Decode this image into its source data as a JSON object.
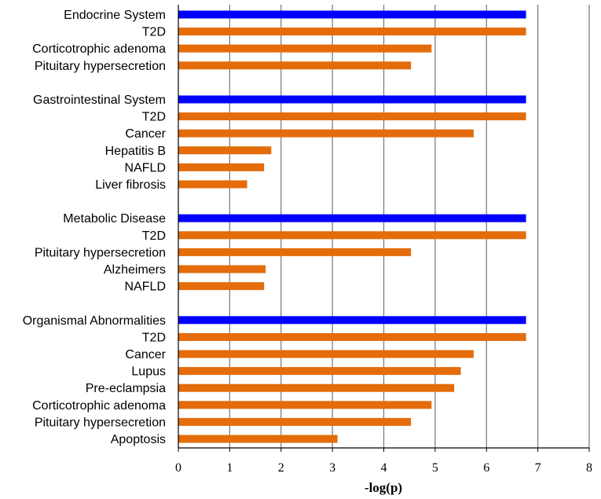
{
  "chart_data": {
    "type": "bar",
    "orientation": "horizontal",
    "xlabel": "-log(p)",
    "ylabel": "",
    "xlim": [
      0,
      8
    ],
    "xticks": [
      0,
      1,
      2,
      3,
      4,
      5,
      6,
      7,
      8
    ],
    "grid": "vertical",
    "colors": {
      "header": "#0000ff",
      "item": "#e46c0a",
      "grid": "#7f7f7f",
      "axis": "#000000"
    },
    "categories": [
      "Endocrine System",
      "T2D",
      "Corticotrophic adenoma",
      "Pituitary hypersecretion",
      "Gastrointestinal System",
      "T2D",
      "Cancer",
      "Hepatitis B",
      "NAFLD",
      "Liver fibrosis",
      "Metabolic Disease",
      "T2D",
      "Pituitary hypersecretion",
      "Alzheimers",
      "NAFLD",
      "Organismal Abnormalities",
      "T2D",
      "Cancer",
      "Lupus",
      "Pre-eclampsia",
      "Corticotrophic adenoma",
      "Pituitary hypersecretion",
      "Apoptosis"
    ],
    "groups": [
      {
        "name": "Endocrine System",
        "value": 6.77,
        "items": [
          {
            "label": "T2D",
            "value": 6.77
          },
          {
            "label": "Corticotrophic adenoma",
            "value": 4.93
          },
          {
            "label": "Pituitary hypersecretion",
            "value": 4.53
          }
        ]
      },
      {
        "name": "Gastrointestinal System",
        "value": 6.77,
        "items": [
          {
            "label": "T2D",
            "value": 6.77
          },
          {
            "label": "Cancer",
            "value": 5.75
          },
          {
            "label": "Hepatitis B",
            "value": 1.81
          },
          {
            "label": "NAFLD",
            "value": 1.67
          },
          {
            "label": "Liver fibrosis",
            "value": 1.34
          }
        ]
      },
      {
        "name": "Metabolic Disease",
        "value": 6.77,
        "items": [
          {
            "label": "T2D",
            "value": 6.77
          },
          {
            "label": "Pituitary hypersecretion",
            "value": 4.53
          },
          {
            "label": "Alzheimers",
            "value": 1.7
          },
          {
            "label": "NAFLD",
            "value": 1.67
          }
        ]
      },
      {
        "name": "Organismal Abnormalities",
        "value": 6.77,
        "items": [
          {
            "label": "T2D",
            "value": 6.77
          },
          {
            "label": "Cancer",
            "value": 5.75
          },
          {
            "label": "Lupus",
            "value": 5.5
          },
          {
            "label": "Pre-eclampsia",
            "value": 5.37
          },
          {
            "label": "Corticotrophic adenoma",
            "value": 4.93
          },
          {
            "label": "Pituitary hypersecretion",
            "value": 4.53
          },
          {
            "label": "Apoptosis",
            "value": 3.1
          }
        ]
      }
    ]
  }
}
